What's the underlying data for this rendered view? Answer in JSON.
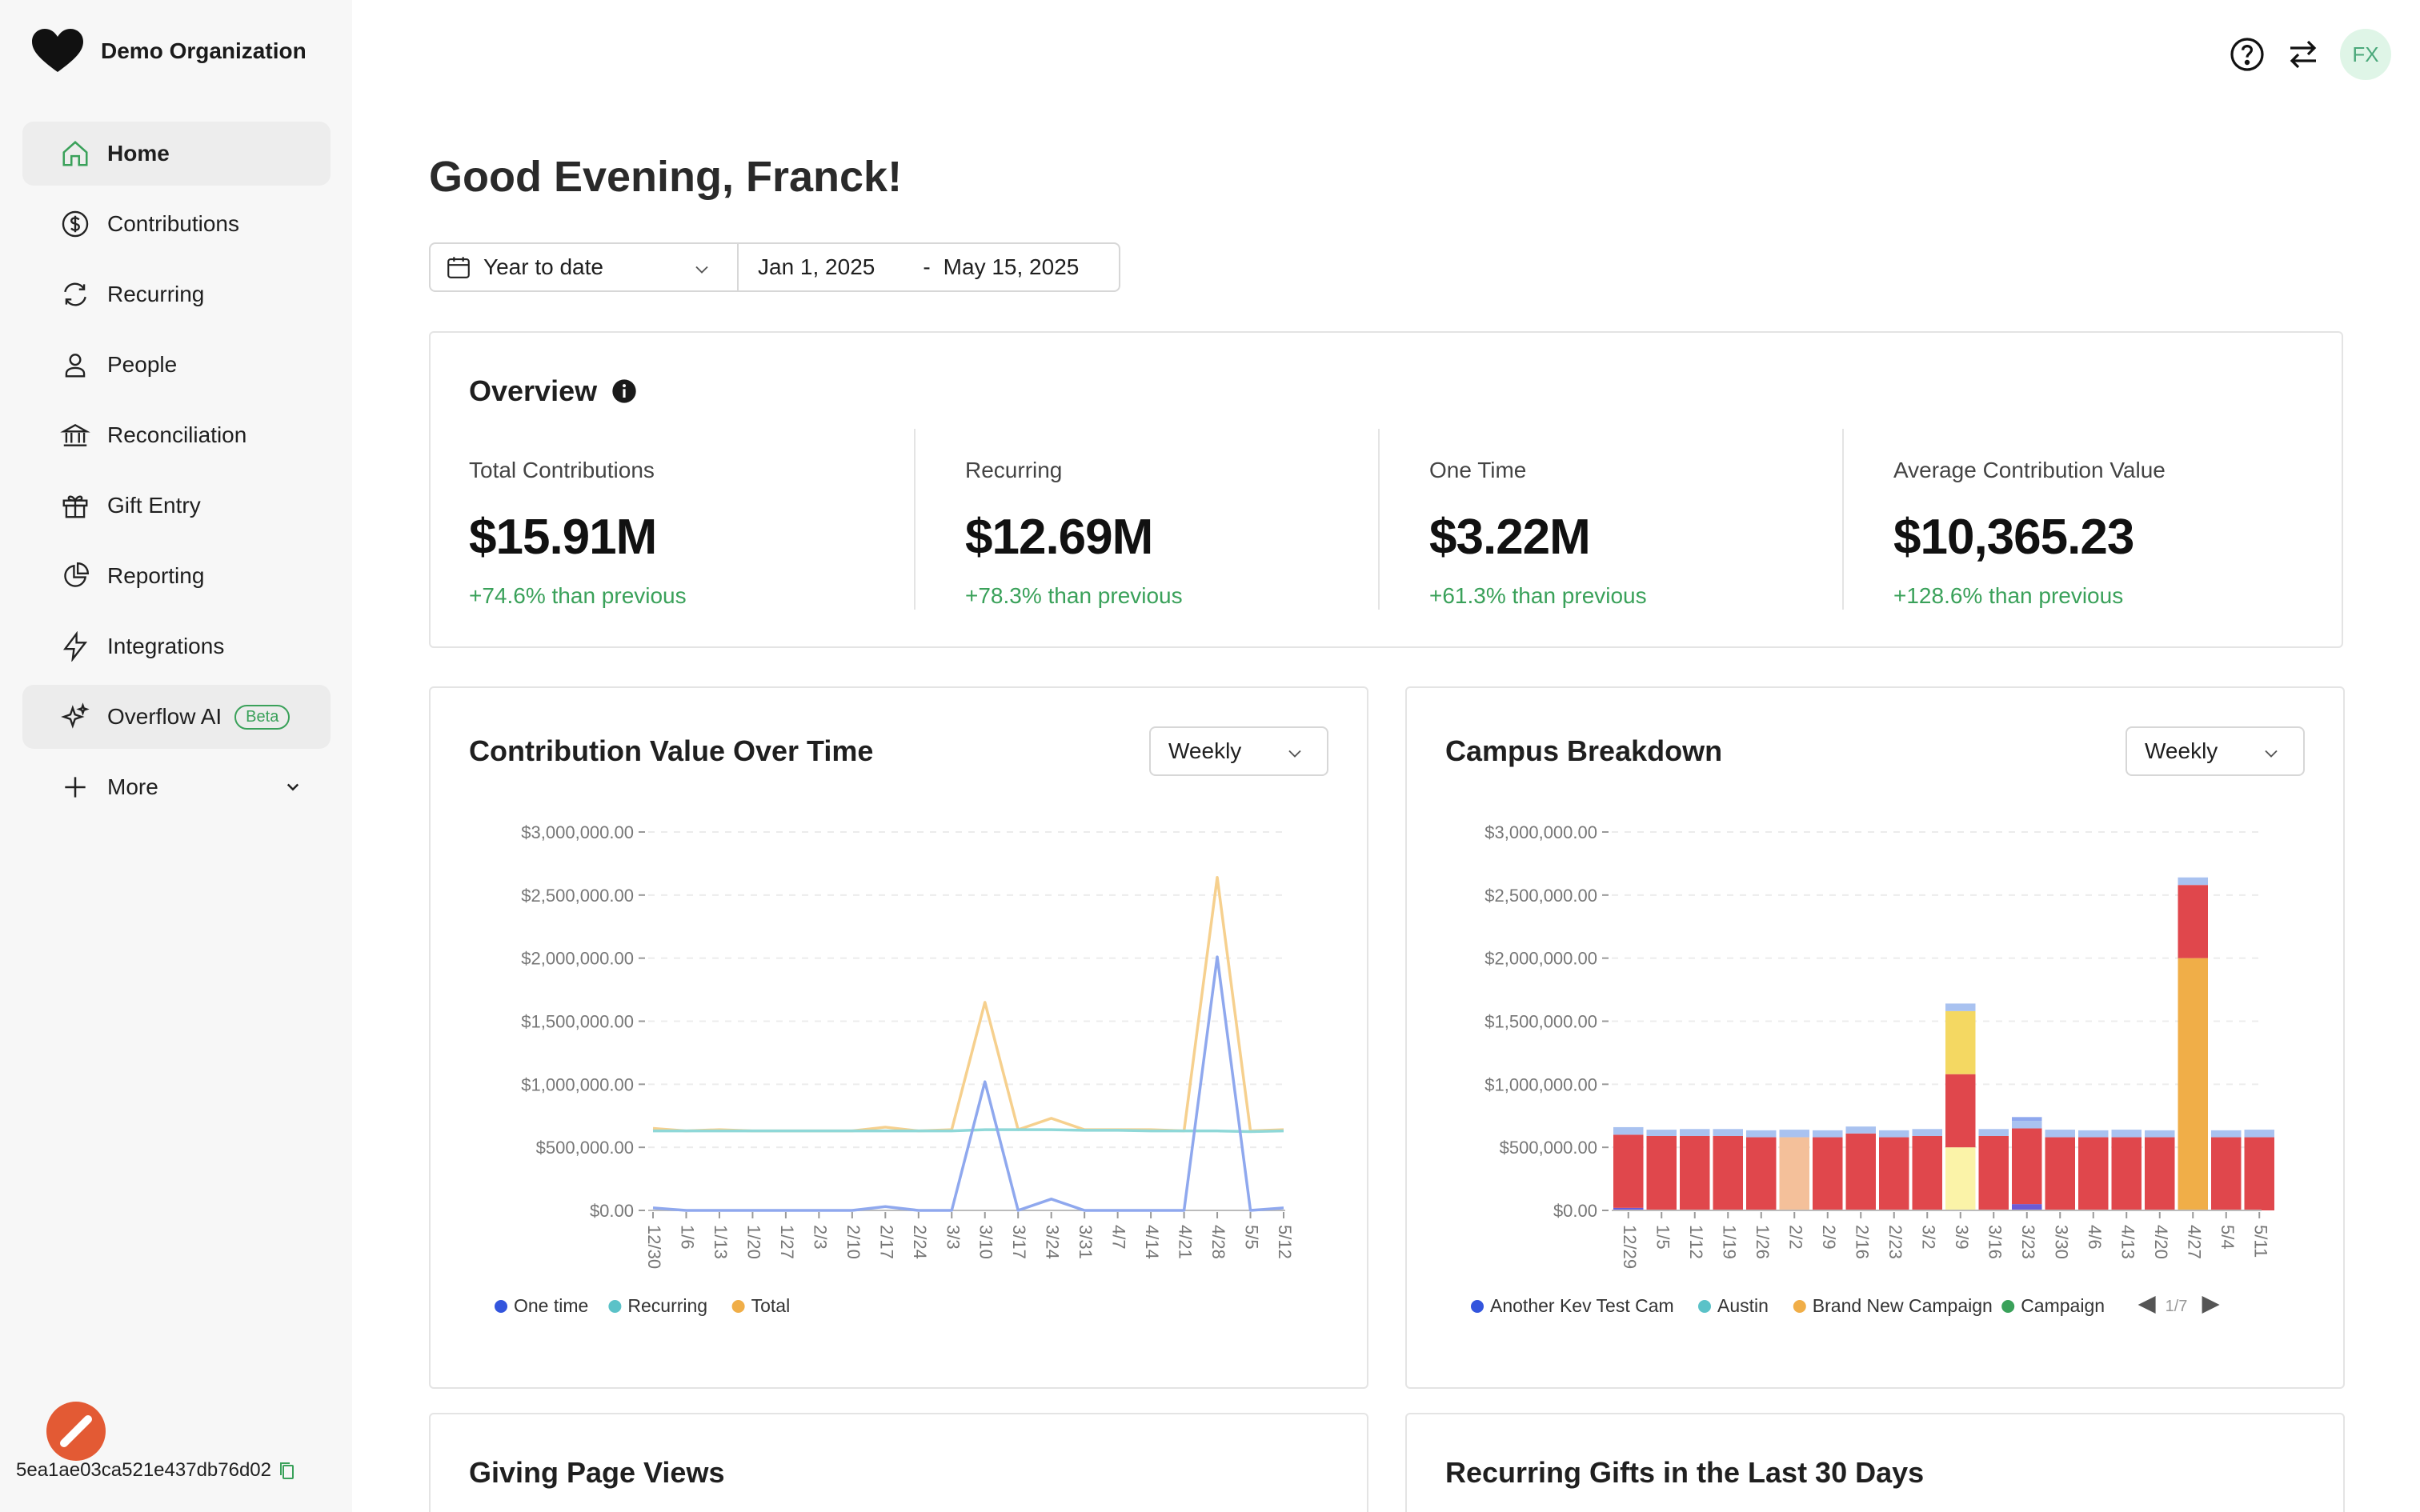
{
  "org": {
    "name": "Demo Organization",
    "logo_icon": "heart-logo-icon"
  },
  "nav": [
    {
      "key": "home",
      "label": "Home",
      "icon": "home-icon",
      "active": true
    },
    {
      "key": "contributions",
      "label": "Contributions",
      "icon": "dollar-circle-icon"
    },
    {
      "key": "recurring",
      "label": "Recurring",
      "icon": "refresh-icon"
    },
    {
      "key": "people",
      "label": "People",
      "icon": "person-icon"
    },
    {
      "key": "reconciliation",
      "label": "Reconciliation",
      "icon": "bank-icon"
    },
    {
      "key": "gift-entry",
      "label": "Gift Entry",
      "icon": "gift-icon"
    },
    {
      "key": "reporting",
      "label": "Reporting",
      "icon": "pie-chart-icon"
    },
    {
      "key": "integrations",
      "label": "Integrations",
      "icon": "lightning-icon"
    },
    {
      "key": "overflow-ai",
      "label": "Overflow AI",
      "icon": "sparkle-icon",
      "badge": "Beta"
    },
    {
      "key": "more",
      "label": "More",
      "icon": "plus-icon"
    }
  ],
  "footer": {
    "hash": "5ea1ae03ca521e437db76d02"
  },
  "topbar": {
    "avatar_initials": "FX"
  },
  "greeting": "Good Evening, Franck!",
  "date_filter": {
    "range": "Year to date",
    "from": "Jan 1, 2025",
    "separator": "-",
    "to": "May 15, 2025"
  },
  "overview": {
    "title": "Overview",
    "metrics": [
      {
        "label": "Total Contributions",
        "value": "$15.91M",
        "change": "+74.6% than previous"
      },
      {
        "label": "Recurring",
        "value": "$12.69M",
        "change": "+78.3% than previous"
      },
      {
        "label": "One Time",
        "value": "$3.22M",
        "change": "+61.3% than previous"
      },
      {
        "label": "Average Contribution Value",
        "value": "$10,365.23",
        "change": "+128.6% than previous"
      }
    ]
  },
  "colors": {
    "accent_green": "#3aa15a",
    "one_time": "#8fa8ee",
    "recurring": "#8fd8d8",
    "total": "#f6d08e",
    "bar_red": "#e0474c",
    "bar_light_blue": "#a9c2f0",
    "bar_peach": "#f4c09a",
    "bar_yellow": "#f4d862",
    "bar_light_yellow": "#fbf3a8",
    "bar_orange": "#f0ae48",
    "bar_purple": "#6b5bd6"
  },
  "chart_data": [
    {
      "type": "line",
      "title": "Contribution Value Over Time",
      "period": "Weekly",
      "x": [
        "12/30",
        "1/6",
        "1/13",
        "1/20",
        "1/27",
        "2/3",
        "2/10",
        "2/17",
        "2/24",
        "3/3",
        "3/10",
        "3/17",
        "3/24",
        "3/31",
        "4/7",
        "4/14",
        "4/21",
        "4/28",
        "5/5",
        "5/12"
      ],
      "y_ticks": [
        "$3,000,000.00",
        "$2,500,000.00",
        "$2,000,000.00",
        "$1,500,000.00",
        "$1,000,000.00",
        "$500,000.00",
        "$0.00"
      ],
      "ylim": [
        0,
        3000000
      ],
      "series": [
        {
          "name": "One time",
          "color": "#8fa8ee",
          "legend_dot": "#3355dd",
          "values": [
            20000,
            0,
            0,
            0,
            0,
            0,
            0,
            30000,
            0,
            0,
            1020000,
            0,
            90000,
            0,
            0,
            0,
            0,
            2010000,
            0,
            20000
          ]
        },
        {
          "name": "Recurring",
          "color": "#8fd8d8",
          "legend_dot": "#5bc2c8",
          "values": [
            630000,
            630000,
            630000,
            630000,
            630000,
            630000,
            630000,
            630000,
            630000,
            630000,
            640000,
            640000,
            640000,
            635000,
            635000,
            630000,
            630000,
            630000,
            625000,
            630000
          ]
        },
        {
          "name": "Total",
          "color": "#f6d08e",
          "legend_dot": "#f0ae48",
          "values": [
            650000,
            630000,
            640000,
            630000,
            630000,
            630000,
            630000,
            660000,
            630000,
            640000,
            1650000,
            640000,
            730000,
            640000,
            640000,
            640000,
            630000,
            2640000,
            630000,
            640000
          ]
        }
      ]
    },
    {
      "type": "bar",
      "title": "Campus Breakdown",
      "period": "Weekly",
      "categories": [
        "12/29",
        "1/5",
        "1/12",
        "1/19",
        "1/26",
        "2/2",
        "2/9",
        "2/16",
        "2/23",
        "3/2",
        "3/9",
        "3/16",
        "3/23",
        "3/30",
        "4/6",
        "4/13",
        "4/20",
        "4/27",
        "5/4",
        "5/11"
      ],
      "y_ticks": [
        "$3,000,000.00",
        "$2,500,000.00",
        "$2,000,000.00",
        "$1,500,000.00",
        "$1,000,000.00",
        "$500,000.00",
        "$0.00"
      ],
      "ylim": [
        0,
        3000000
      ],
      "stacks": [
        [
          {
            "v": 20000,
            "c": "#6b5bd6"
          },
          {
            "v": 580000,
            "c": "#e0474c"
          },
          {
            "v": 60000,
            "c": "#a9c2f0"
          }
        ],
        [
          {
            "v": 590000,
            "c": "#e0474c"
          },
          {
            "v": 50000,
            "c": "#a9c2f0"
          }
        ],
        [
          {
            "v": 590000,
            "c": "#e0474c"
          },
          {
            "v": 55000,
            "c": "#a9c2f0"
          }
        ],
        [
          {
            "v": 590000,
            "c": "#e0474c"
          },
          {
            "v": 55000,
            "c": "#a9c2f0"
          }
        ],
        [
          {
            "v": 580000,
            "c": "#e0474c"
          },
          {
            "v": 55000,
            "c": "#a9c2f0"
          }
        ],
        [
          {
            "v": 580000,
            "c": "#f4c09a"
          },
          {
            "v": 60000,
            "c": "#a9c2f0"
          }
        ],
        [
          {
            "v": 580000,
            "c": "#e0474c"
          },
          {
            "v": 55000,
            "c": "#a9c2f0"
          }
        ],
        [
          {
            "v": 610000,
            "c": "#e0474c"
          },
          {
            "v": 55000,
            "c": "#a9c2f0"
          }
        ],
        [
          {
            "v": 580000,
            "c": "#e0474c"
          },
          {
            "v": 55000,
            "c": "#a9c2f0"
          }
        ],
        [
          {
            "v": 590000,
            "c": "#e0474c"
          },
          {
            "v": 55000,
            "c": "#a9c2f0"
          }
        ],
        [
          {
            "v": 500000,
            "c": "#fbf3a8"
          },
          {
            "v": 580000,
            "c": "#e0474c"
          },
          {
            "v": 500000,
            "c": "#f4d862"
          },
          {
            "v": 60000,
            "c": "#a9c2f0"
          }
        ],
        [
          {
            "v": 590000,
            "c": "#e0474c"
          },
          {
            "v": 55000,
            "c": "#a9c2f0"
          }
        ],
        [
          {
            "v": 50000,
            "c": "#6b5bd6"
          },
          {
            "v": 600000,
            "c": "#e0474c"
          },
          {
            "v": 60000,
            "c": "#a9c2f0"
          },
          {
            "v": 30000,
            "c": "#8fa8ee"
          }
        ],
        [
          {
            "v": 580000,
            "c": "#e0474c"
          },
          {
            "v": 60000,
            "c": "#a9c2f0"
          }
        ],
        [
          {
            "v": 580000,
            "c": "#e0474c"
          },
          {
            "v": 55000,
            "c": "#a9c2f0"
          }
        ],
        [
          {
            "v": 580000,
            "c": "#e0474c"
          },
          {
            "v": 60000,
            "c": "#a9c2f0"
          }
        ],
        [
          {
            "v": 580000,
            "c": "#e0474c"
          },
          {
            "v": 55000,
            "c": "#a9c2f0"
          }
        ],
        [
          {
            "v": 2000000,
            "c": "#f0ae48"
          },
          {
            "v": 580000,
            "c": "#e0474c"
          },
          {
            "v": 60000,
            "c": "#a9c2f0"
          }
        ],
        [
          {
            "v": 580000,
            "c": "#e0474c"
          },
          {
            "v": 55000,
            "c": "#a9c2f0"
          }
        ],
        [
          {
            "v": 580000,
            "c": "#e0474c"
          },
          {
            "v": 60000,
            "c": "#a9c2f0"
          }
        ]
      ],
      "legend": [
        {
          "name": "Another Kev Test Cam",
          "color": "#3355dd"
        },
        {
          "name": "Austin",
          "color": "#5bc2c8"
        },
        {
          "name": "Brand New Campaign",
          "color": "#f0ae48"
        },
        {
          "name": "Campaign",
          "color": "#3aa15a"
        }
      ],
      "legend_page": "1/7"
    }
  ],
  "bottom_cards": [
    {
      "title": "Giving Page Views"
    },
    {
      "title": "Recurring Gifts in the Last 30 Days"
    }
  ]
}
